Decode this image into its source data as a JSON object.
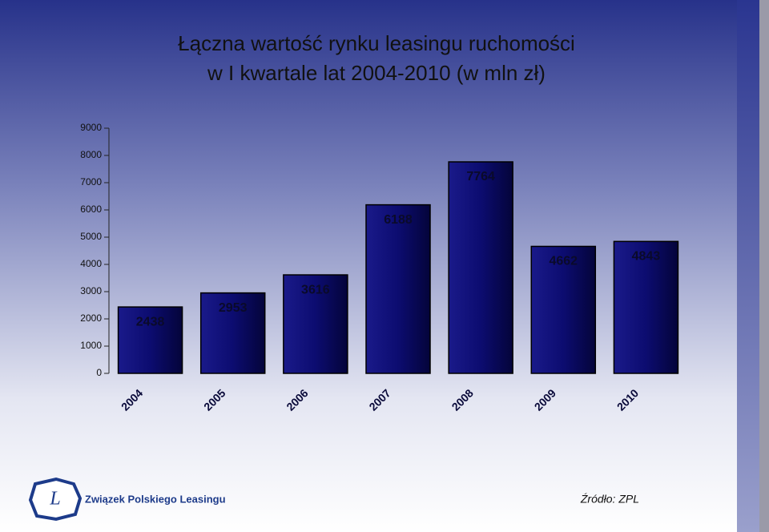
{
  "chart_data": {
    "type": "bar",
    "title": [
      "Łączna wartość rynku leasingu ruchomości",
      "w I kwartale lat 2004-2010 (w mln zł)"
    ],
    "categories": [
      "2004",
      "2005",
      "2006",
      "2007",
      "2008",
      "2009",
      "2010"
    ],
    "values": [
      2438,
      2953,
      3616,
      6188,
      7764,
      4662,
      4843
    ],
    "color": "#0a0a6e",
    "ylim": [
      0,
      9000
    ],
    "yticks": [
      0,
      1000,
      2000,
      3000,
      4000,
      5000,
      6000,
      7000,
      8000,
      9000
    ]
  },
  "footer": {
    "logo_letter": "L",
    "logo_text": "Związek Polskiego Leasingu",
    "source": "Źródło: ZPL"
  }
}
